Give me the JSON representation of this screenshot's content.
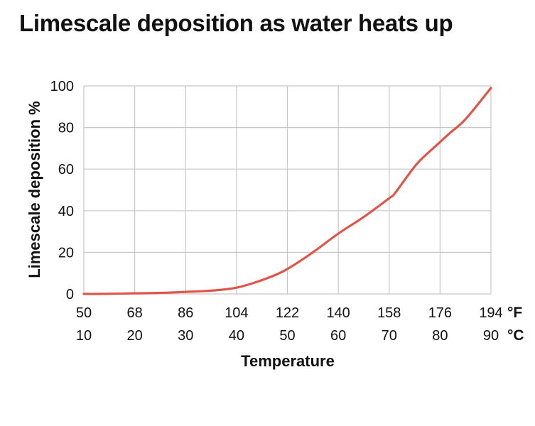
{
  "chart_data": {
    "type": "line",
    "title": "Limescale deposition as water heats up",
    "xlabel": "Temperature",
    "ylabel": "Limescale deposition %",
    "x_unit_celsius": "°C",
    "x_unit_fahrenheit": "°F",
    "x_ticks_celsius": [
      10,
      20,
      30,
      40,
      50,
      60,
      70,
      80,
      90
    ],
    "x_ticks_fahrenheit": [
      50,
      68,
      86,
      104,
      122,
      140,
      158,
      176,
      194
    ],
    "xlim": [
      10,
      90
    ],
    "ylim": [
      0,
      100
    ],
    "y_ticks": [
      0,
      20,
      40,
      60,
      80,
      100
    ],
    "grid": true,
    "line_color": "#e0554a",
    "series": [
      {
        "x": [
          10,
          13,
          20,
          25,
          30,
          33,
          37,
          40,
          43,
          47,
          50,
          55,
          60,
          65,
          70,
          71,
          74,
          76,
          80,
          82,
          85,
          90
        ],
        "y": [
          0,
          0,
          0.3,
          0.5,
          1,
          1.3,
          2,
          3,
          5,
          8.5,
          12,
          20,
          29,
          37,
          46,
          48,
          58,
          64,
          73,
          77.5,
          84,
          99
        ]
      }
    ]
  }
}
